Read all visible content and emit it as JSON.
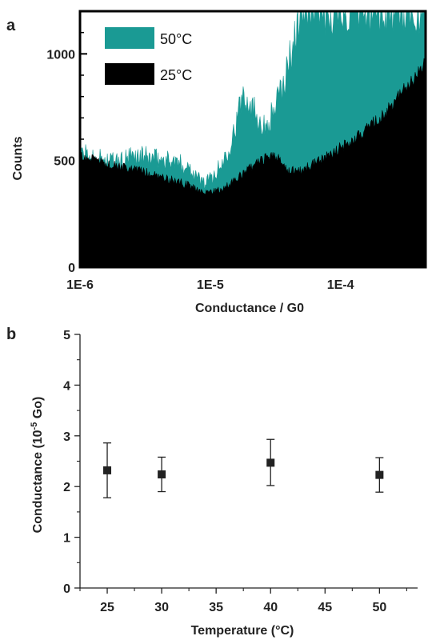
{
  "chart_data": [
    {
      "panel_label": "a",
      "type": "area",
      "xlabel": "Conductance / G0",
      "ylabel": "Counts",
      "x_scale": "log",
      "xlim": [
        1e-06,
        0.00045
      ],
      "ylim": [
        0,
        1200
      ],
      "x_ticks": [
        {
          "label": "1E-6",
          "value": 1e-06
        },
        {
          "label": "1E-5",
          "value": 1e-05
        },
        {
          "label": "1E-4",
          "value": 0.0001
        }
      ],
      "y_ticks": [
        {
          "label": "0",
          "value": 0
        },
        {
          "label": "500",
          "value": 500
        },
        {
          "label": "1000",
          "value": 1000
        }
      ],
      "legend_position": "top-left",
      "series": [
        {
          "name": "50°C",
          "color": "#1a9a94",
          "x": [
            1e-06,
            1.5e-06,
            2e-06,
            2.5e-06,
            3e-06,
            4e-06,
            5e-06,
            6e-06,
            7e-06,
            8e-06,
            9e-06,
            1e-05,
            1.2e-05,
            1.4e-05,
            1.6e-05,
            1.8e-05,
            2e-05,
            2.3e-05,
            2.6e-05,
            3e-05,
            3.5e-05,
            4e-05,
            4.5e-05,
            5e-05,
            6e-05,
            8e-05,
            0.0001,
            0.00015,
            0.0002,
            0.0003,
            0.00045
          ],
          "y": [
            530,
            505,
            490,
            515,
            520,
            505,
            500,
            480,
            470,
            420,
            395,
            410,
            470,
            570,
            680,
            830,
            770,
            720,
            650,
            720,
            820,
            950,
            1100,
            1200,
            1200,
            1200,
            1200,
            1200,
            1200,
            1200,
            1200
          ]
        },
        {
          "name": "25°C",
          "color": "#000000",
          "x": [
            1e-06,
            1.5e-06,
            2e-06,
            3e-06,
            4e-06,
            5e-06,
            6e-06,
            7e-06,
            8e-06,
            9e-06,
            1e-05,
            1.2e-05,
            1.5e-05,
            2e-05,
            2.5e-05,
            3e-05,
            3.5e-05,
            4e-05,
            5e-05,
            6e-05,
            8e-05,
            0.0001,
            0.00013,
            0.00016,
            0.0002,
            0.00025,
            0.0003,
            0.00035,
            0.00045
          ],
          "y": [
            520,
            490,
            470,
            450,
            430,
            410,
            395,
            380,
            365,
            355,
            350,
            365,
            400,
            460,
            500,
            530,
            500,
            450,
            450,
            480,
            520,
            560,
            600,
            650,
            700,
            760,
            820,
            870,
            950
          ]
        }
      ]
    },
    {
      "panel_label": "b",
      "type": "scatter",
      "xlabel": "Temperature (°C)",
      "ylabel_parts": {
        "before": "Conductance (10",
        "sup": "-5",
        "after": " Go)"
      },
      "xlim": [
        22.5,
        53.5
      ],
      "ylim": [
        0,
        5
      ],
      "x_ticks": [
        {
          "label": "25",
          "value": 25
        },
        {
          "label": "30",
          "value": 30
        },
        {
          "label": "35",
          "value": 35
        },
        {
          "label": "40",
          "value": 40
        },
        {
          "label": "45",
          "value": 45
        },
        {
          "label": "50",
          "value": 50
        }
      ],
      "y_ticks": [
        {
          "label": "0",
          "value": 0
        },
        {
          "label": "1",
          "value": 1
        },
        {
          "label": "2",
          "value": 2
        },
        {
          "label": "3",
          "value": 3
        },
        {
          "label": "4",
          "value": 4
        },
        {
          "label": "5",
          "value": 5
        }
      ],
      "points": [
        {
          "x": 25,
          "y": 2.32,
          "err_low": 1.78,
          "err_high": 2.86
        },
        {
          "x": 30,
          "y": 2.24,
          "err_low": 1.9,
          "err_high": 2.58
        },
        {
          "x": 40,
          "y": 2.47,
          "err_low": 2.02,
          "err_high": 2.93
        },
        {
          "x": 50,
          "y": 2.23,
          "err_low": 1.89,
          "err_high": 2.57
        }
      ]
    }
  ]
}
